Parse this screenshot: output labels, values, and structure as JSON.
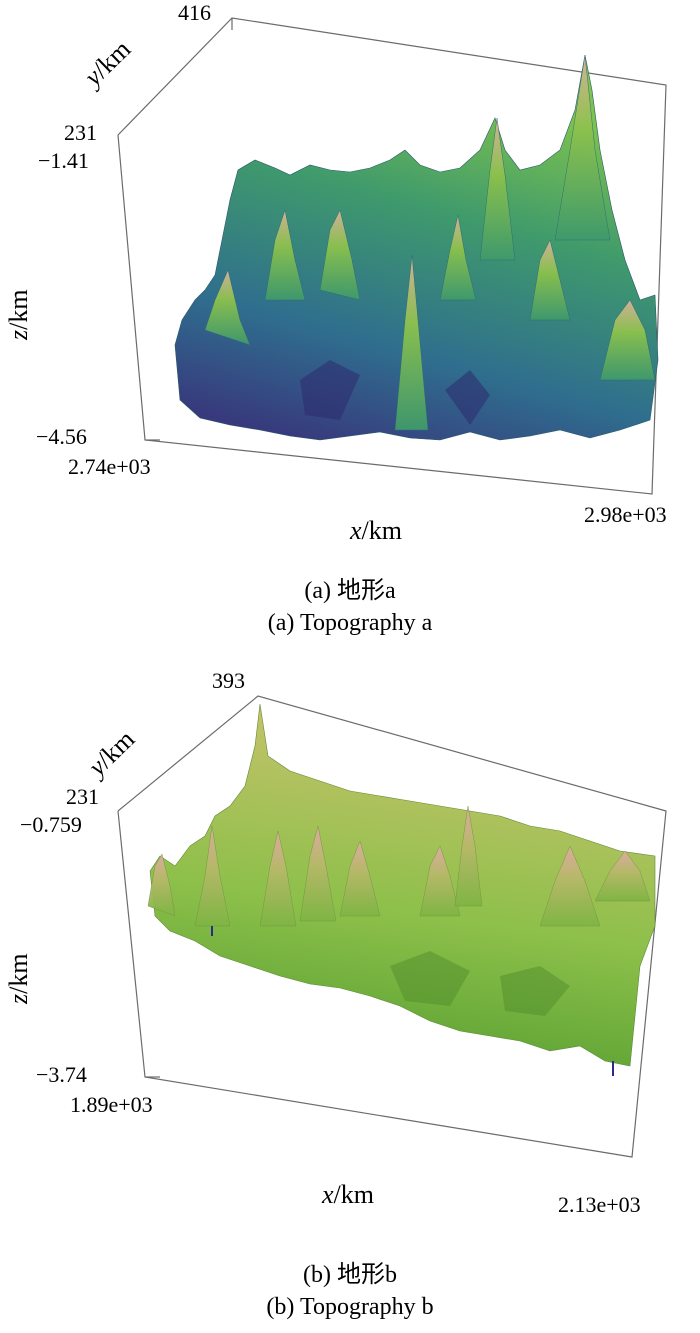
{
  "figures": [
    {
      "id": "a",
      "ticks": {
        "y_top": "416",
        "y_bottom": "231",
        "z_top": "−1.41",
        "z_bottom": "−4.56",
        "x_left": "2.74e+03",
        "x_right": "2.98e+03"
      },
      "labels": {
        "y": "y",
        "z": "z",
        "x": "x",
        "unit": "/km"
      },
      "caption_cn": "(a) 地形a",
      "caption_en": "(a) Topography a",
      "colors": {
        "low": "#3b2c7a",
        "mid": "#2e7d8c",
        "high": "#6fbf4a",
        "peak": "#c9a88a"
      }
    },
    {
      "id": "b",
      "ticks": {
        "y_top": "393",
        "y_bottom": "231",
        "z_top": "−0.759",
        "z_bottom": "−3.74",
        "x_left": "1.89e+03",
        "x_right": "2.13e+03"
      },
      "labels": {
        "y": "y",
        "z": "z",
        "x": "x",
        "unit": "/km"
      },
      "caption_cn": "(b) 地形b",
      "caption_en": "(b) Topography b",
      "colors": {
        "low": "#5fa83a",
        "mid": "#9cc24a",
        "high": "#c8c068",
        "peak": "#d9a6a0"
      }
    }
  ]
}
